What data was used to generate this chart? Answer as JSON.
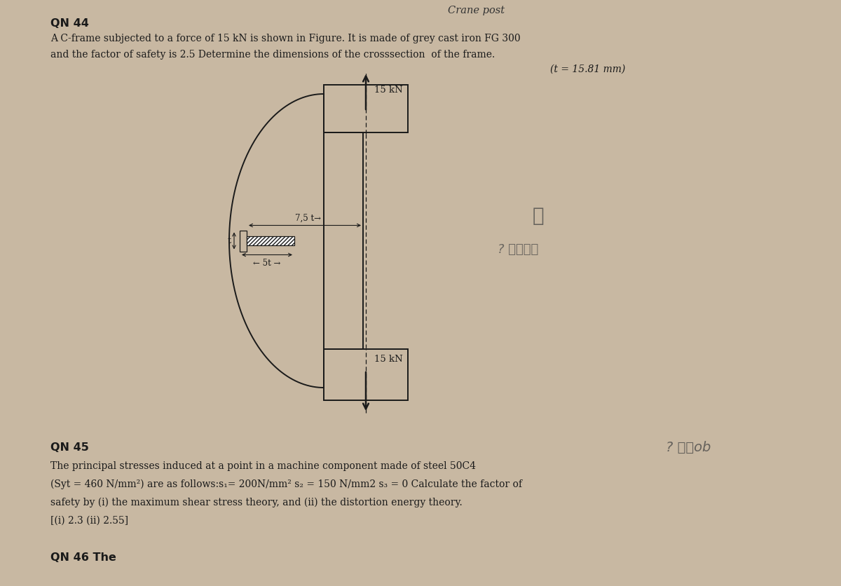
{
  "bg_color": "#c8b8a2",
  "page_bg": "#e8ddd0",
  "title_qn44": "QN 44",
  "text_qn44_line1": "A C-frame subjected to a force of 15 kN is shown in Figure. It is made of grey cast iron FG 300",
  "text_qn44_line2": "and the factor of safety is 2.5 Determine the dimensions of the crosssection  of the frame.",
  "text_qn44_answer": "(t = 15.81 mm)",
  "force_label": "15 kN",
  "title_qn45": "QN 45",
  "text_qn45_line1": "The principal stresses induced at a point in a machine component made of steel 50C4",
  "text_qn45_line2": "(Syt = 460 N/mm²) are as follows:s₁= 200N/mm² s₂ = 150 N/mm2 s₃ = 0 Calculate the factor of",
  "text_qn45_line3": "safety by (i) the maximum shear stress theory, and (ii) the distortion energy theory.",
  "text_qn45_answer": "[(i) 2.3 (ii) 2.55]",
  "title_qn46": "QN 46 The",
  "header_text": "Crane post",
  "black": "#1a1a1a",
  "lw": 1.4
}
